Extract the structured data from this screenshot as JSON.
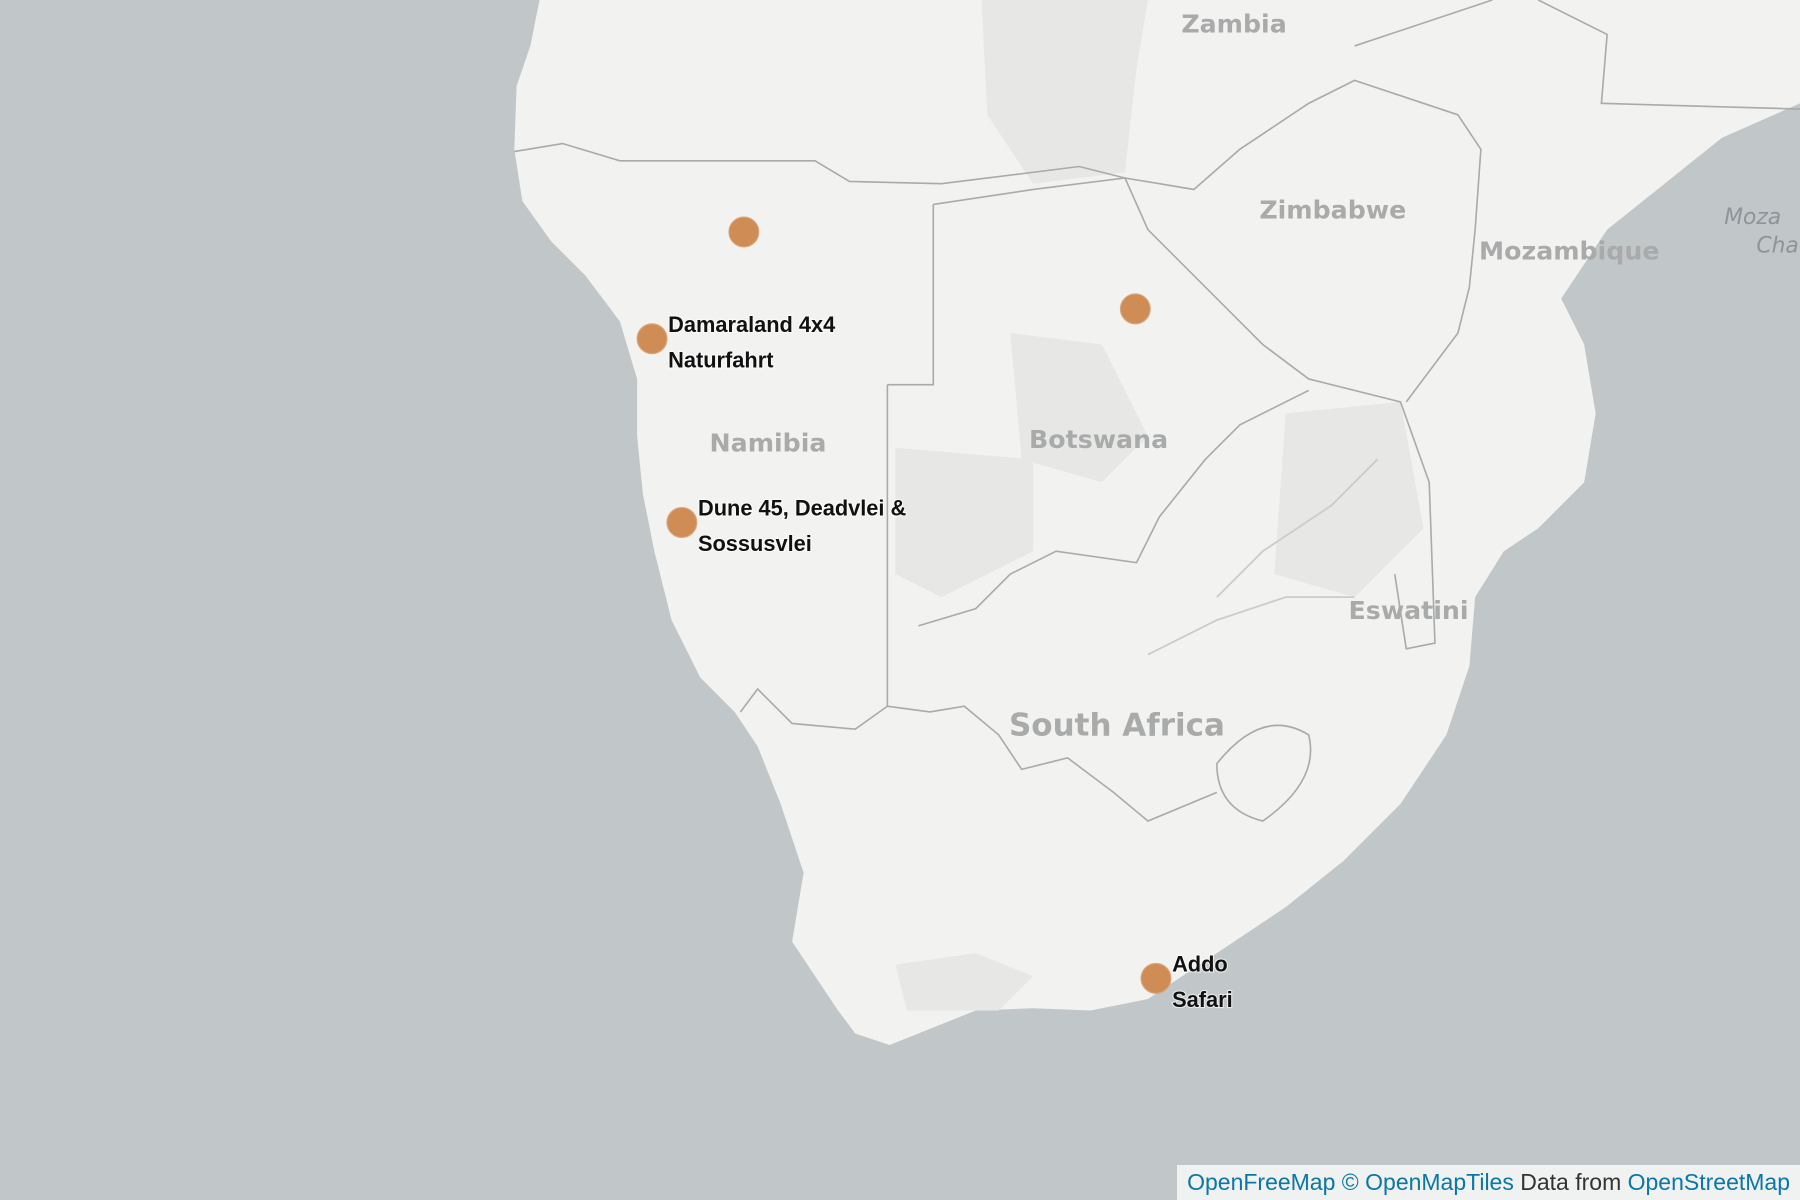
{
  "countries": [
    "Zambia",
    "Zimbabwe",
    "Mozambique",
    "Namibia",
    "Botswana",
    "South Africa",
    "Eswatini"
  ],
  "sea_labels": [
    "Moza",
    "Cha"
  ],
  "markers": [
    {
      "label_lines": [
        "Damaraland 4x4",
        "Naturfahrt"
      ]
    },
    {
      "label_lines": [
        "Dune 45, Deadvlei &",
        "Sossusvlei"
      ]
    },
    {
      "label_lines": [
        "Addo",
        "Safari"
      ]
    }
  ],
  "attribution": {
    "openfreemap": "OpenFreeMap",
    "openmaptiles": "© OpenMapTiles",
    "data_from": "Data from",
    "openstreetmap": "OpenStreetMap"
  }
}
